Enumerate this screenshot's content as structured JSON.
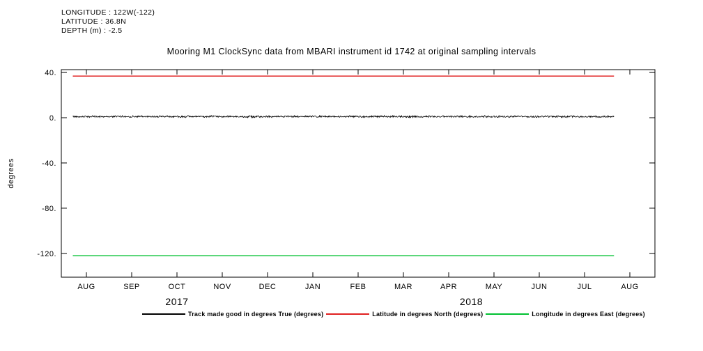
{
  "header": {
    "info_lines": [
      "LONGITUDE : 122W(-122)",
      "LATITUDE : 36.8N",
      "DEPTH (m) : -2.5"
    ],
    "title": "Mooring M1 ClockSync data from MBARI instrument id 1742 at original sampling intervals"
  },
  "chart_data": {
    "type": "line",
    "title": "Mooring M1 ClockSync data from MBARI instrument id 1742 at original sampling intervals",
    "xlabel": "",
    "ylabel": "degrees",
    "ylim": [
      -141,
      42.5
    ],
    "yticks": [
      40,
      0,
      -40,
      -80,
      -120
    ],
    "ytick_labels": [
      "40.",
      "0.",
      "-40.",
      "-80.",
      "-120."
    ],
    "x_tick_labels": [
      "AUG",
      "SEP",
      "OCT",
      "NOV",
      "DEC",
      "JAN",
      "FEB",
      "MAR",
      "APR",
      "MAY",
      "JUN",
      "JUL",
      "AUG"
    ],
    "year_labels": [
      {
        "text": "2017",
        "tick_index": 2
      },
      {
        "text": "2018",
        "tick_index": 8.5
      }
    ],
    "grid": false,
    "legend_position": "bottom",
    "series": [
      {
        "name": "Track made good in degrees True (degrees)",
        "color": "#000000",
        "value": 1.0,
        "noise": 1.0,
        "x_start": -0.3,
        "x_end": 11.65
      },
      {
        "name": "Latitude in degrees North (degrees)",
        "color": "#e02020",
        "value": 36.8,
        "noise": 0,
        "x_start": -0.3,
        "x_end": 11.65
      },
      {
        "name": "Longitude in degrees East (degrees)",
        "color": "#00c030",
        "value": -122.0,
        "noise": 0,
        "x_start": -0.3,
        "x_end": 11.65
      }
    ]
  }
}
